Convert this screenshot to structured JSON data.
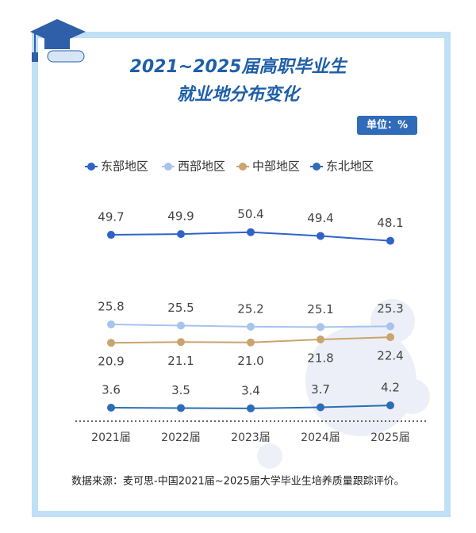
{
  "chart_data": {
    "type": "line",
    "title": [
      "2021~2025届高职毕业生",
      "就业地分布变化"
    ],
    "unit": "单位：%",
    "source": "数据来源：麦可思-中国2021届~2025届大学毕业生培养质量跟踪评价。",
    "categories": [
      "2021届",
      "2022届",
      "2023届",
      "2024届",
      "2025届"
    ],
    "ylim": [
      0,
      55
    ],
    "series": [
      {
        "name": "东部地区",
        "color": "#2f63c8",
        "values": [
          49.7,
          49.9,
          50.4,
          49.4,
          48.1
        ]
      },
      {
        "name": "西部地区",
        "color": "#a6c4ee",
        "values": [
          25.8,
          25.5,
          25.2,
          25.1,
          25.3
        ]
      },
      {
        "name": "中部地区",
        "color": "#c9a46e",
        "values": [
          20.9,
          21.1,
          21.0,
          21.8,
          22.4
        ],
        "value_labels": [
          "20.9",
          "21.1",
          "21.0",
          "21.8",
          "22.4"
        ]
      },
      {
        "name": "东北地区",
        "color": "#2e6db5",
        "values": [
          3.6,
          3.5,
          3.4,
          3.7,
          4.2
        ]
      }
    ]
  }
}
